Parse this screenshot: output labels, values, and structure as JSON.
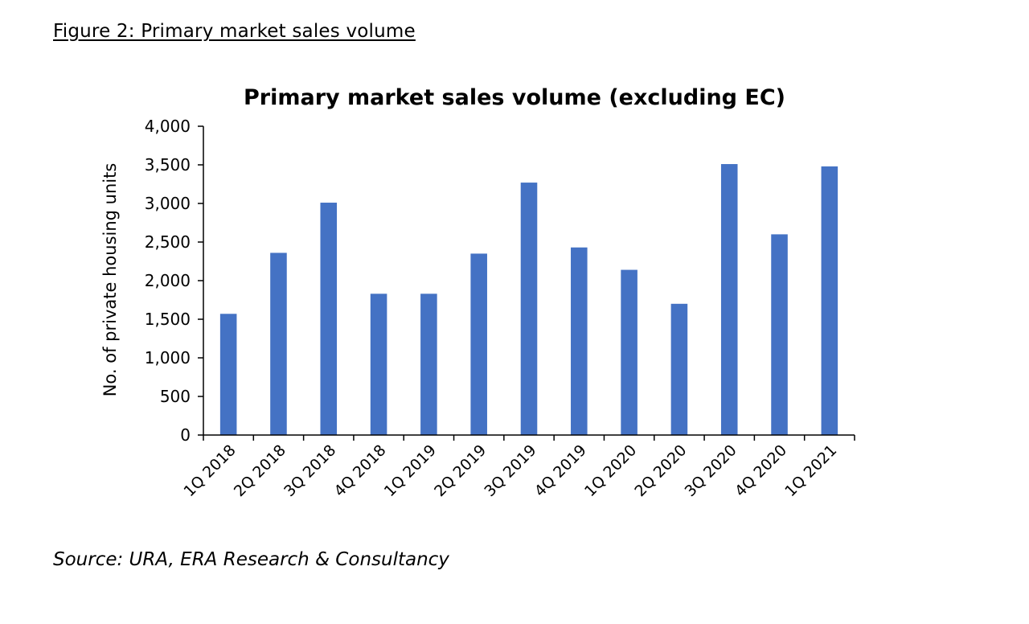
{
  "figure_caption": "Figure 2: Primary market sales volume",
  "source": "Source: URA, ERA Research & Consultancy",
  "chart_data": {
    "type": "bar",
    "title": "Primary market sales volume (excluding EC)",
    "xlabel": "",
    "ylabel": "No. of private housing units",
    "categories": [
      "1Q 2018",
      "2Q 2018",
      "3Q 2018",
      "4Q 2018",
      "1Q 2019",
      "2Q 2019",
      "3Q 2019",
      "4Q 2019",
      "1Q 2020",
      "2Q 2020",
      "3Q 2020",
      "4Q 2020",
      "1Q 2021"
    ],
    "values": [
      1570,
      2360,
      3010,
      1830,
      1830,
      2350,
      3270,
      2430,
      2140,
      1700,
      3510,
      2600,
      3480
    ],
    "ylim": [
      0,
      4000
    ],
    "yticks": [
      0,
      500,
      1000,
      1500,
      2000,
      2500,
      3000,
      3500,
      4000
    ],
    "ytick_labels": [
      "0",
      "500",
      "1,000",
      "1,500",
      "2,000",
      "2,500",
      "3,000",
      "3,500",
      "4,000"
    ],
    "bar_color": "#4472C4",
    "grid": false,
    "legend": "none"
  }
}
